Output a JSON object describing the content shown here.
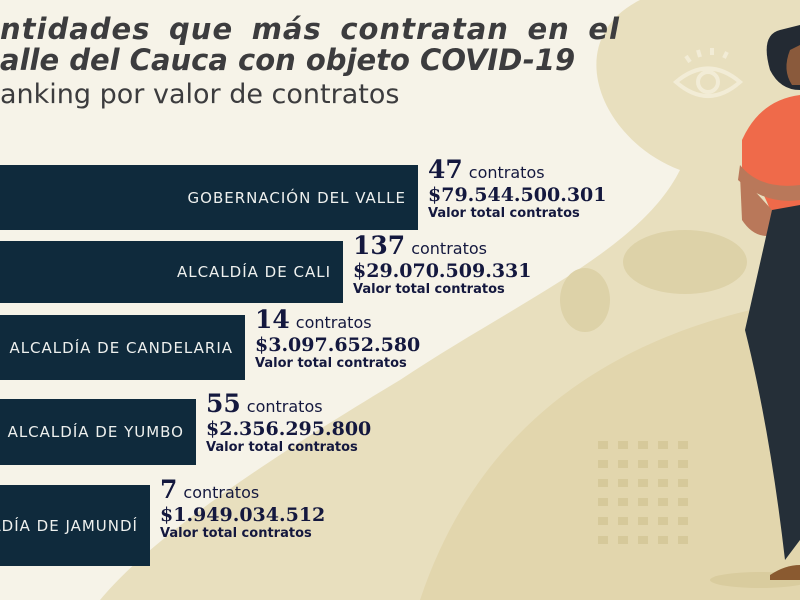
{
  "header": {
    "title_line1": "ntidades que más contratan en el",
    "title_line2": "alle del Cauca con objeto COVID-19",
    "subtitle": "anking por valor de contratos"
  },
  "colors": {
    "bar": "#0f2a3c",
    "background": "#f6f3e8",
    "accent_shape": "#e6dcb8",
    "shirt": "#ef6a4a",
    "pants": "#252f38"
  },
  "chart_data": {
    "type": "bar",
    "orientation": "horizontal",
    "title": "",
    "categories": [
      "GOBERNACIÓN DEL VALLE",
      "ALCALDÍA DE CALI",
      "ALCALDÍA DE CANDELARIA",
      "ALCALDÍA DE YUMBO",
      "ALDÍA DE JAMUNDÍ"
    ],
    "series": [
      {
        "values": [
          79544500301,
          29070509331,
          3097652580,
          2356295800,
          1949034512
        ]
      }
    ],
    "contracts": [
      47,
      137,
      14,
      55,
      7
    ],
    "value_labels": [
      "$79.544.500.301",
      "$29.070.509.331",
      "$3.097.652.580",
      "$2.356.295.800",
      "$1.949.034.512"
    ],
    "contracts_label": "contratos",
    "value_caption": "Valor total contratos"
  },
  "decorations": [
    "eye-icon",
    "woman-illustration",
    "dot-grid"
  ]
}
